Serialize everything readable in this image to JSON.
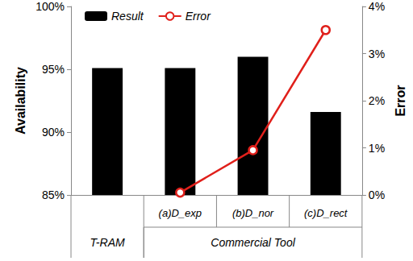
{
  "chart_data": {
    "type": "bar",
    "categories": [
      null,
      "(a)D_exp",
      "(b)D_nor",
      "(c)D_rect"
    ],
    "groups": [
      {
        "label": "T-RAM",
        "span": 1
      },
      {
        "label": "Commercial Tool",
        "span": 3
      }
    ],
    "series": [
      {
        "name": "Result",
        "type": "bar",
        "color": "#000000",
        "values": [
          95.1,
          95.1,
          96.0,
          91.6
        ]
      },
      {
        "name": "Error",
        "type": "line",
        "axis": "y2",
        "color": "#e0201b",
        "marker": "circle",
        "values": [
          null,
          0.05,
          0.95,
          3.5
        ]
      }
    ],
    "y_label": "Availability",
    "y2_label": "Error",
    "ylim": [
      85,
      100
    ],
    "yticks": [
      {
        "value": 85,
        "label": "85%"
      },
      {
        "value": 90,
        "label": "90%"
      },
      {
        "value": 95,
        "label": "95%"
      },
      {
        "value": 100,
        "label": "100%"
      }
    ],
    "y2lim": [
      0,
      4
    ],
    "y2ticks": [
      {
        "value": 0,
        "label": "0%"
      },
      {
        "value": 1,
        "label": "1%"
      },
      {
        "value": 2,
        "label": "2%"
      },
      {
        "value": 3,
        "label": "3%"
      },
      {
        "value": 4,
        "label": "4%"
      }
    ],
    "legend": "top-left",
    "grid": false
  }
}
